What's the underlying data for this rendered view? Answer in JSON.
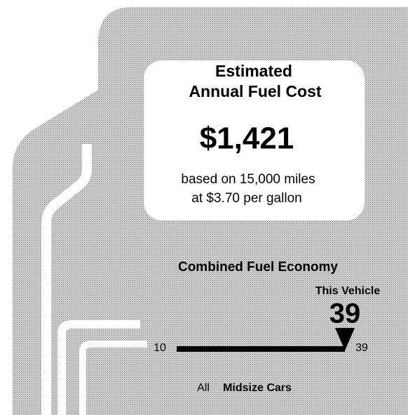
{
  "cost_box": {
    "title_line1": "Estimated",
    "title_line2": "Annual Fuel Cost",
    "amount": "$1,421",
    "basis_line1": "based on 15,000 miles",
    "basis_line2": "at $3.70 per gallon"
  },
  "economy": {
    "title": "Combined Fuel Economy",
    "marker_label": "This Vehicle",
    "value": 39,
    "scale_min": 10,
    "scale_max": 39,
    "class_prefix": "All",
    "class_name": "Midsize Cars"
  }
}
